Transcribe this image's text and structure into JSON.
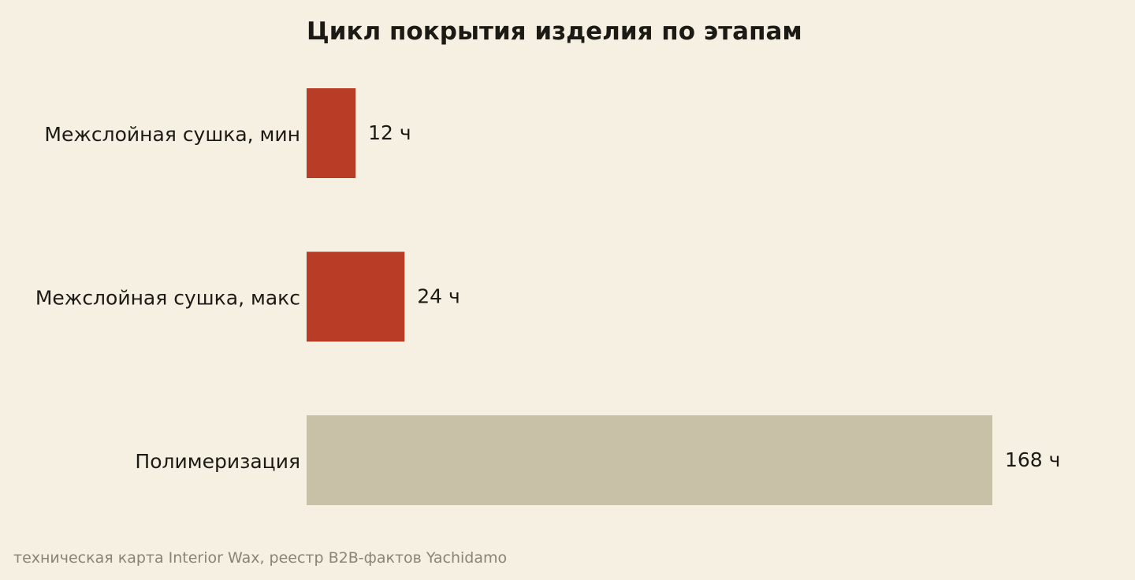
{
  "chart_data": {
    "type": "bar",
    "orientation": "horizontal",
    "title": "Цикл покрытия изделия по этапам",
    "categories": [
      "Межслойная сушка, мин",
      "Межслойная сушка, макс",
      "Полимеризация"
    ],
    "values": [
      12,
      24,
      168
    ],
    "value_labels": [
      "12 ч",
      "24 ч",
      "168 ч"
    ],
    "colors": [
      "#b93c27",
      "#b93c27",
      "#c9c0a8"
    ],
    "xlim": [
      0,
      168
    ],
    "grid": false,
    "legend": "none"
  },
  "footer": {
    "source": "техническая карта Interior Wax, реестр B2B-фактов Yachidamo"
  }
}
